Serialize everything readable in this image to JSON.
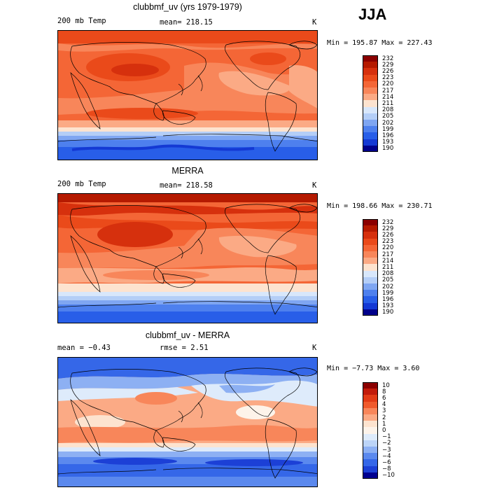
{
  "season": "JJA",
  "panels": [
    {
      "title": "clubbmf_uv (yrs 1979-1979)",
      "left_label": "200 mb Temp",
      "center_label": "mean= 218.15",
      "right_label": "K",
      "minmax": "Min = 195.87 Max = 227.43",
      "scale": "abs",
      "colorbar_labels": [
        "232",
        "229",
        "226",
        "223",
        "220",
        "217",
        "214",
        "211",
        "208",
        "205",
        "202",
        "199",
        "196",
        "193",
        "190"
      ]
    },
    {
      "title": "MERRA",
      "left_label": "200 mb Temp",
      "center_label": "mean= 218.58",
      "right_label": "K",
      "minmax": "Min = 198.66 Max = 230.71",
      "scale": "abs",
      "colorbar_labels": [
        "232",
        "229",
        "226",
        "223",
        "220",
        "217",
        "214",
        "211",
        "208",
        "205",
        "202",
        "199",
        "196",
        "193",
        "190"
      ]
    },
    {
      "title": "clubbmf_uv - MERRA",
      "left_label": "mean =  −0.43",
      "center_label": "rmse =   2.51",
      "right_label": "K",
      "minmax": "Min =  −7.73 Max =   3.60",
      "scale": "diff",
      "colorbar_labels": [
        "10",
        "8",
        "6",
        "4",
        "3",
        "2",
        "1",
        "0",
        "−1",
        "−2",
        "−3",
        "−4",
        "−6",
        "−8",
        "−10"
      ]
    }
  ],
  "colors": {
    "abs": [
      "#8b0000",
      "#b51a00",
      "#d6300d",
      "#ea4a1a",
      "#f46636",
      "#f8865a",
      "#fbaa85",
      "#fde3cf",
      "#d8e7fb",
      "#b4cef7",
      "#7fa6f2",
      "#4e80ee",
      "#285ee8",
      "#1439d4",
      "#00008b"
    ],
    "diff": [
      "#8b0000",
      "#c21b0a",
      "#e23b16",
      "#f05a2c",
      "#f8865a",
      "#fbaa85",
      "#fde3cf",
      "#fdf3ea",
      "#deebfb",
      "#bcd4f7",
      "#8db0f3",
      "#5b89ee",
      "#3567e8",
      "#1c40d6",
      "#000090"
    ]
  }
}
